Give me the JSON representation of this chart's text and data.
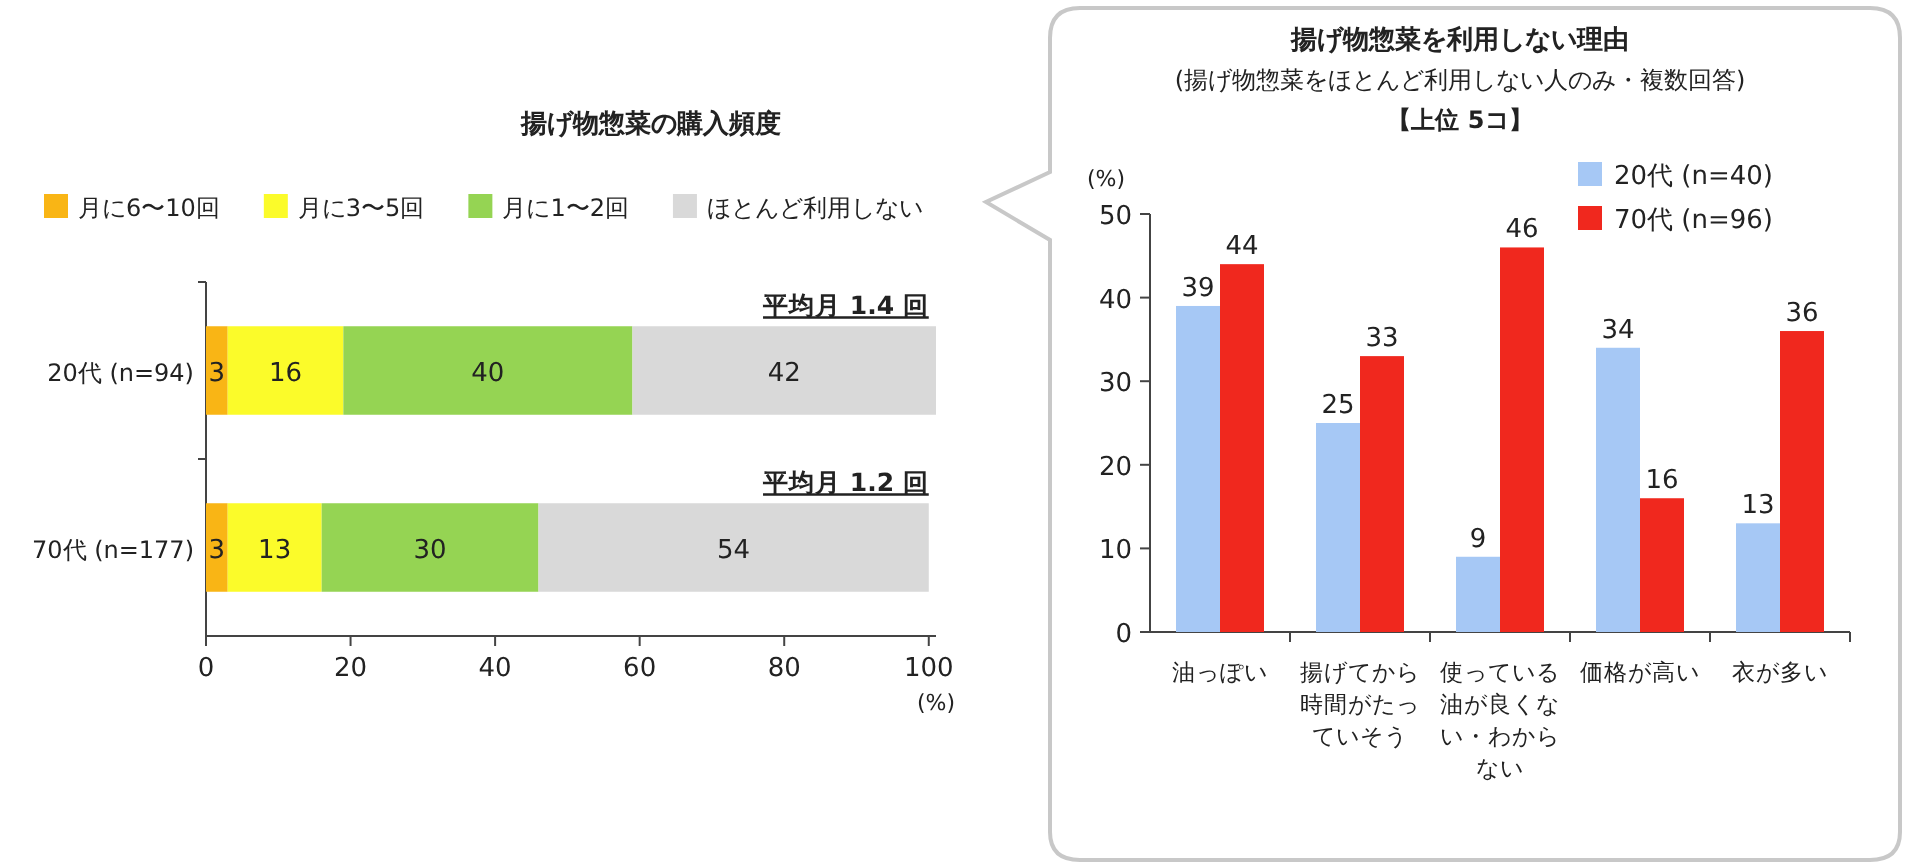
{
  "chart_data": [
    {
      "type": "bar",
      "orientation": "horizontal",
      "stacked": true,
      "title": "揚げ物惣菜の購入頻度",
      "xlabel": "(%)",
      "categories": [
        "20代 (n=94)",
        "70代 (n=177)"
      ],
      "series": [
        {
          "name": "月に6〜10回",
          "color": "#f9b515",
          "values": [
            3,
            3
          ]
        },
        {
          "name": "月に3〜5回",
          "color": "#fbfb2a",
          "values": [
            16,
            13
          ]
        },
        {
          "name": "月に1〜2回",
          "color": "#95d453",
          "values": [
            40,
            30
          ]
        },
        {
          "name": "ほとんど利用しない",
          "color": "#d9d9d9",
          "values": [
            42,
            54
          ]
        }
      ],
      "xlim": [
        0,
        101
      ],
      "xticks": [
        0,
        20,
        40,
        60,
        80,
        100
      ],
      "data_labels": true,
      "legend": "top",
      "annotations": [
        {
          "text": "平均月 1.4 回",
          "x": 100,
          "y": "20代 (n=94)"
        },
        {
          "text": "平均月 1.2 回",
          "x": 100,
          "y": "70代 (n=177)"
        }
      ]
    },
    {
      "type": "bar",
      "title": "揚げ物惣菜を利用しない理由",
      "subtitle": "(揚げ物惣菜をほとんど利用しない人のみ・複数回答)",
      "ylabel": "(%)",
      "annotations": [
        "【上位 5コ】"
      ],
      "categories": [
        "油っぽい",
        "揚げてから時間がたっていそう",
        "使っている油が良くない・わからない",
        "価格が高い",
        "衣が多い"
      ],
      "series": [
        {
          "name": "20代 (n=40)",
          "color": "#a6c8f5",
          "values": [
            39,
            25,
            9,
            34,
            13
          ]
        },
        {
          "name": "70代 (n=96)",
          "color": "#f0281e",
          "values": [
            44,
            33,
            46,
            16,
            36
          ]
        }
      ],
      "ylim": [
        0,
        50
      ],
      "yticks": [
        0,
        10,
        20,
        30,
        40,
        50
      ],
      "data_labels": true,
      "legend": "top right"
    }
  ]
}
